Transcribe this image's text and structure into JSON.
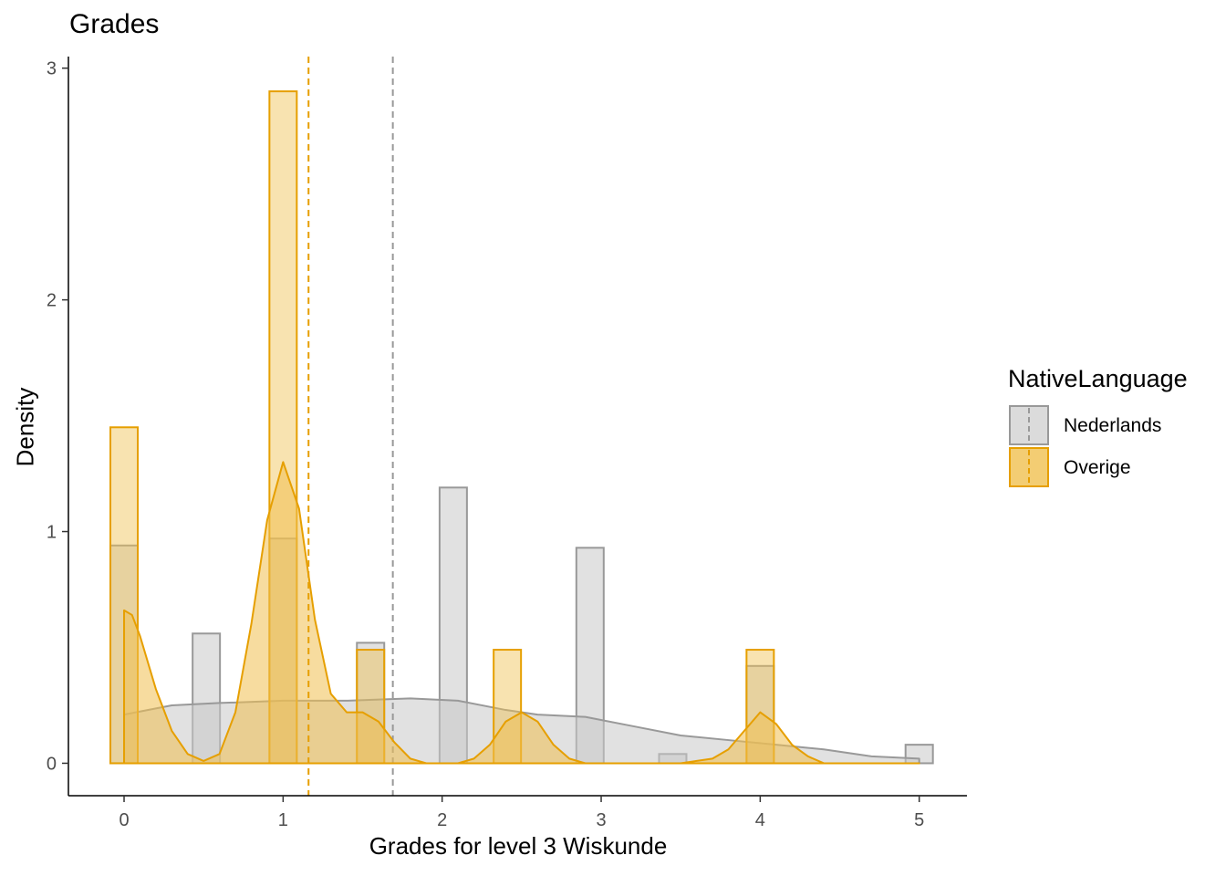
{
  "chart_data": {
    "type": "bar",
    "title": "Grades",
    "xlabel": "Grades for level 3 Wiskunde",
    "ylabel": "Density",
    "xlim": [
      -0.35,
      5.3
    ],
    "ylim": [
      -0.14,
      3.05
    ],
    "x_ticks": [
      0,
      1,
      2,
      3,
      4,
      5
    ],
    "y_ticks": [
      0,
      1,
      2,
      3
    ],
    "bin_width": 0.172,
    "legend_title": "NativeLanguage",
    "legend_position": "right",
    "series": [
      {
        "name": "Nederlands",
        "color": "#999999",
        "fill": "#c8c8c8",
        "histogram": [
          {
            "x": 0.0,
            "density": 0.94
          },
          {
            "x": 0.517,
            "density": 0.56
          },
          {
            "x": 1.0,
            "density": 0.97
          },
          {
            "x": 1.55,
            "density": 0.52
          },
          {
            "x": 2.07,
            "density": 1.19
          },
          {
            "x": 2.93,
            "density": 0.93
          },
          {
            "x": 3.45,
            "density": 0.04
          },
          {
            "x": 4.0,
            "density": 0.42
          },
          {
            "x": 5.0,
            "density": 0.08
          }
        ],
        "density_curve": [
          [
            0.0,
            0.21
          ],
          [
            0.3,
            0.25
          ],
          [
            0.6,
            0.26
          ],
          [
            1.0,
            0.27
          ],
          [
            1.4,
            0.27
          ],
          [
            1.8,
            0.28
          ],
          [
            2.1,
            0.27
          ],
          [
            2.4,
            0.23
          ],
          [
            2.6,
            0.21
          ],
          [
            2.9,
            0.2
          ],
          [
            3.2,
            0.16
          ],
          [
            3.5,
            0.12
          ],
          [
            3.8,
            0.1
          ],
          [
            4.1,
            0.08
          ],
          [
            4.4,
            0.06
          ],
          [
            4.7,
            0.03
          ],
          [
            5.0,
            0.02
          ]
        ],
        "mean": 1.69
      },
      {
        "name": "Overige",
        "color": "#E69F00",
        "fill": "#f0c050",
        "histogram": [
          {
            "x": 0.0,
            "density": 1.45
          },
          {
            "x": 1.0,
            "density": 2.9
          },
          {
            "x": 1.55,
            "density": 0.49
          },
          {
            "x": 2.41,
            "density": 0.49
          },
          {
            "x": 4.0,
            "density": 0.49
          }
        ],
        "density_curve": [
          [
            0.0,
            0.66
          ],
          [
            0.05,
            0.64
          ],
          [
            0.1,
            0.55
          ],
          [
            0.2,
            0.32
          ],
          [
            0.3,
            0.14
          ],
          [
            0.4,
            0.04
          ],
          [
            0.5,
            0.01
          ],
          [
            0.6,
            0.04
          ],
          [
            0.7,
            0.22
          ],
          [
            0.8,
            0.6
          ],
          [
            0.9,
            1.05
          ],
          [
            1.0,
            1.3
          ],
          [
            1.1,
            1.1
          ],
          [
            1.2,
            0.62
          ],
          [
            1.3,
            0.3
          ],
          [
            1.4,
            0.22
          ],
          [
            1.5,
            0.22
          ],
          [
            1.6,
            0.18
          ],
          [
            1.7,
            0.09
          ],
          [
            1.8,
            0.02
          ],
          [
            1.9,
            0.0
          ],
          [
            2.1,
            0.0
          ],
          [
            2.2,
            0.02
          ],
          [
            2.3,
            0.08
          ],
          [
            2.4,
            0.18
          ],
          [
            2.5,
            0.22
          ],
          [
            2.6,
            0.18
          ],
          [
            2.7,
            0.08
          ],
          [
            2.8,
            0.02
          ],
          [
            2.9,
            0.0
          ],
          [
            3.5,
            0.0
          ],
          [
            3.7,
            0.02
          ],
          [
            3.8,
            0.06
          ],
          [
            3.9,
            0.14
          ],
          [
            4.0,
            0.22
          ],
          [
            4.1,
            0.17
          ],
          [
            4.2,
            0.08
          ],
          [
            4.3,
            0.03
          ],
          [
            4.4,
            0.0
          ],
          [
            5.0,
            0.0
          ]
        ],
        "mean": 1.16
      }
    ]
  }
}
